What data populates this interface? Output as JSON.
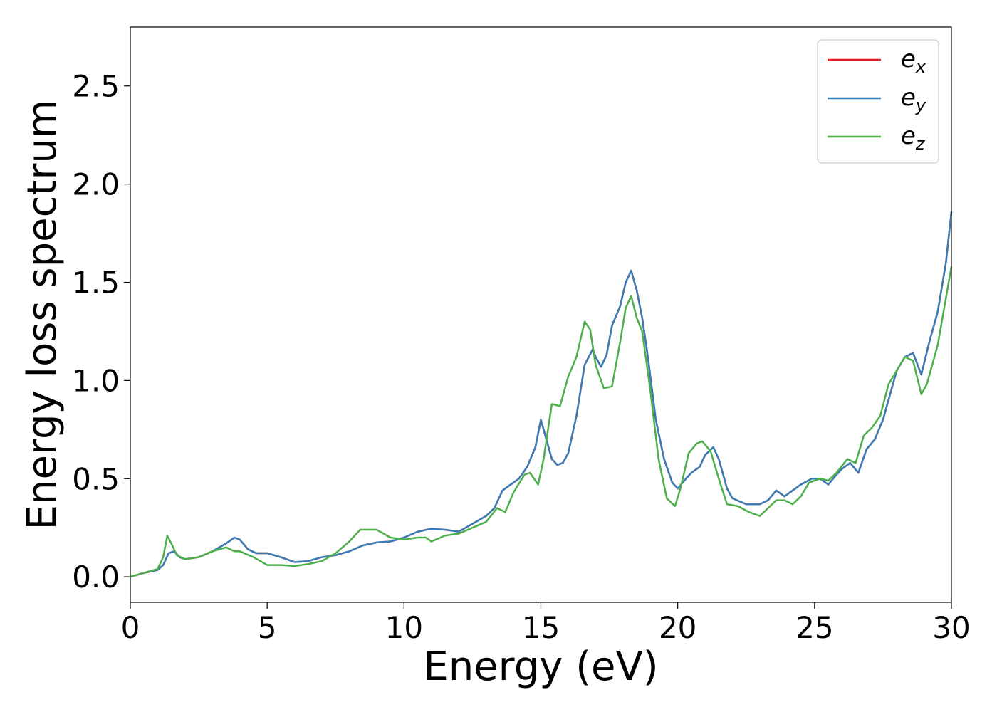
{
  "chart_data": {
    "type": "line",
    "title": "",
    "xlabel": "Energy (eV)",
    "ylabel": "Energy loss spectrum",
    "xlim": [
      0,
      30
    ],
    "ylim": [
      -0.13,
      2.8
    ],
    "xticks": [
      0,
      5,
      10,
      15,
      20,
      25,
      30
    ],
    "xtick_labels": [
      "0",
      "5",
      "10",
      "15",
      "20",
      "25",
      "30"
    ],
    "yticks": [
      0.0,
      0.5,
      1.0,
      1.5,
      2.0,
      2.5
    ],
    "ytick_labels": [
      "0.0",
      "0.5",
      "1.0",
      "1.5",
      "2.0",
      "2.5"
    ],
    "grid": false,
    "legend_position": "top-right",
    "series": [
      {
        "name": "e_x",
        "label_base": "e",
        "label_sub": "x",
        "color": "#e41a1c",
        "x": [
          0,
          0.5,
          1.0,
          1.2,
          1.4,
          1.6,
          1.8,
          2.0,
          2.5,
          3.0,
          3.5,
          3.8,
          4.0,
          4.3,
          4.6,
          5.0,
          5.5,
          6.0,
          6.5,
          7.0,
          7.5,
          8.0,
          8.5,
          9.0,
          9.5,
          10.0,
          10.5,
          11.0,
          11.5,
          12.0,
          12.5,
          13.0,
          13.3,
          13.6,
          13.9,
          14.2,
          14.5,
          14.8,
          15.0,
          15.2,
          15.4,
          15.6,
          15.8,
          16.0,
          16.3,
          16.6,
          16.9,
          17.0,
          17.2,
          17.4,
          17.6,
          17.9,
          18.1,
          18.3,
          18.5,
          18.7,
          18.9,
          19.2,
          19.5,
          19.8,
          20.0,
          20.3,
          20.5,
          20.8,
          21.0,
          21.3,
          21.5,
          21.8,
          22.0,
          22.5,
          23.0,
          23.3,
          23.6,
          23.9,
          24.2,
          24.5,
          24.9,
          25.2,
          25.5,
          25.8,
          26.0,
          26.3,
          26.6,
          26.9,
          27.2,
          27.5,
          27.8,
          28.0,
          28.3,
          28.6,
          28.9,
          29.2,
          29.5,
          29.8,
          30.0
        ],
        "y": [
          0.0,
          0.02,
          0.035,
          0.06,
          0.12,
          0.13,
          0.1,
          0.09,
          0.1,
          0.13,
          0.17,
          0.2,
          0.19,
          0.14,
          0.12,
          0.12,
          0.1,
          0.075,
          0.08,
          0.1,
          0.11,
          0.13,
          0.16,
          0.175,
          0.18,
          0.2,
          0.23,
          0.245,
          0.24,
          0.23,
          0.27,
          0.31,
          0.35,
          0.44,
          0.47,
          0.5,
          0.56,
          0.66,
          0.8,
          0.7,
          0.6,
          0.57,
          0.58,
          0.63,
          0.82,
          1.08,
          1.16,
          1.12,
          1.07,
          1.13,
          1.28,
          1.38,
          1.5,
          1.56,
          1.46,
          1.32,
          1.13,
          0.8,
          0.6,
          0.48,
          0.45,
          0.5,
          0.53,
          0.56,
          0.62,
          0.66,
          0.6,
          0.45,
          0.4,
          0.37,
          0.37,
          0.39,
          0.44,
          0.41,
          0.44,
          0.47,
          0.5,
          0.5,
          0.47,
          0.52,
          0.55,
          0.58,
          0.53,
          0.65,
          0.7,
          0.8,
          0.95,
          1.05,
          1.12,
          1.14,
          1.03,
          1.2,
          1.35,
          1.6,
          1.86
        ]
      },
      {
        "name": "e_y",
        "label_base": "e",
        "label_sub": "y",
        "color": "#377eb8",
        "x": [
          0,
          0.5,
          1.0,
          1.2,
          1.4,
          1.6,
          1.8,
          2.0,
          2.5,
          3.0,
          3.5,
          3.8,
          4.0,
          4.3,
          4.6,
          5.0,
          5.5,
          6.0,
          6.5,
          7.0,
          7.5,
          8.0,
          8.5,
          9.0,
          9.5,
          10.0,
          10.5,
          11.0,
          11.5,
          12.0,
          12.5,
          13.0,
          13.3,
          13.6,
          13.9,
          14.2,
          14.5,
          14.8,
          15.0,
          15.2,
          15.4,
          15.6,
          15.8,
          16.0,
          16.3,
          16.6,
          16.9,
          17.0,
          17.2,
          17.4,
          17.6,
          17.9,
          18.1,
          18.3,
          18.5,
          18.7,
          18.9,
          19.2,
          19.5,
          19.8,
          20.0,
          20.3,
          20.5,
          20.8,
          21.0,
          21.3,
          21.5,
          21.8,
          22.0,
          22.5,
          23.0,
          23.3,
          23.6,
          23.9,
          24.2,
          24.5,
          24.9,
          25.2,
          25.5,
          25.8,
          26.0,
          26.3,
          26.6,
          26.9,
          27.2,
          27.5,
          27.8,
          28.0,
          28.3,
          28.6,
          28.9,
          29.2,
          29.5,
          29.8,
          30.0
        ],
        "y": [
          0.0,
          0.02,
          0.035,
          0.06,
          0.12,
          0.13,
          0.1,
          0.09,
          0.1,
          0.13,
          0.17,
          0.2,
          0.19,
          0.14,
          0.12,
          0.12,
          0.1,
          0.075,
          0.08,
          0.1,
          0.11,
          0.13,
          0.16,
          0.175,
          0.18,
          0.2,
          0.23,
          0.245,
          0.24,
          0.23,
          0.27,
          0.31,
          0.35,
          0.44,
          0.47,
          0.5,
          0.56,
          0.66,
          0.8,
          0.7,
          0.6,
          0.57,
          0.58,
          0.63,
          0.82,
          1.08,
          1.16,
          1.12,
          1.07,
          1.13,
          1.28,
          1.38,
          1.5,
          1.56,
          1.46,
          1.32,
          1.13,
          0.8,
          0.6,
          0.48,
          0.45,
          0.5,
          0.53,
          0.56,
          0.62,
          0.66,
          0.6,
          0.45,
          0.4,
          0.37,
          0.37,
          0.39,
          0.44,
          0.41,
          0.44,
          0.47,
          0.5,
          0.5,
          0.47,
          0.52,
          0.55,
          0.58,
          0.53,
          0.65,
          0.7,
          0.8,
          0.95,
          1.05,
          1.12,
          1.14,
          1.03,
          1.2,
          1.35,
          1.6,
          1.86
        ]
      },
      {
        "name": "e_z",
        "label_base": "e",
        "label_sub": "z",
        "color": "#4daf4a",
        "x": [
          0,
          0.5,
          1.0,
          1.2,
          1.35,
          1.5,
          1.7,
          2.0,
          2.5,
          3.0,
          3.5,
          3.8,
          4.0,
          4.5,
          5.0,
          5.5,
          6.0,
          6.5,
          7.0,
          7.5,
          8.0,
          8.4,
          8.7,
          9.0,
          9.5,
          10.0,
          10.5,
          10.8,
          11.0,
          11.5,
          12.0,
          12.5,
          13.0,
          13.4,
          13.7,
          14.0,
          14.4,
          14.6,
          14.9,
          15.1,
          15.4,
          15.7,
          16.0,
          16.3,
          16.6,
          16.8,
          17.0,
          17.3,
          17.6,
          17.9,
          18.1,
          18.3,
          18.5,
          18.7,
          19.0,
          19.3,
          19.6,
          19.9,
          20.1,
          20.4,
          20.7,
          20.9,
          21.2,
          21.5,
          21.8,
          22.2,
          22.6,
          23.0,
          23.3,
          23.6,
          23.9,
          24.2,
          24.5,
          24.8,
          25.2,
          25.5,
          25.8,
          26.2,
          26.5,
          26.8,
          27.1,
          27.4,
          27.7,
          28.0,
          28.3,
          28.6,
          28.9,
          29.1,
          29.5,
          29.8,
          30.0
        ],
        "y": [
          0.0,
          0.02,
          0.04,
          0.1,
          0.21,
          0.17,
          0.11,
          0.09,
          0.1,
          0.13,
          0.15,
          0.13,
          0.13,
          0.1,
          0.06,
          0.06,
          0.055,
          0.065,
          0.08,
          0.12,
          0.18,
          0.24,
          0.24,
          0.24,
          0.2,
          0.19,
          0.2,
          0.2,
          0.18,
          0.21,
          0.22,
          0.25,
          0.28,
          0.35,
          0.33,
          0.43,
          0.52,
          0.53,
          0.47,
          0.6,
          0.88,
          0.87,
          1.02,
          1.12,
          1.3,
          1.26,
          1.08,
          0.96,
          0.97,
          1.2,
          1.37,
          1.43,
          1.32,
          1.25,
          0.95,
          0.6,
          0.4,
          0.36,
          0.45,
          0.63,
          0.68,
          0.69,
          0.64,
          0.5,
          0.37,
          0.36,
          0.33,
          0.31,
          0.35,
          0.39,
          0.39,
          0.37,
          0.41,
          0.48,
          0.5,
          0.49,
          0.53,
          0.6,
          0.58,
          0.72,
          0.76,
          0.82,
          0.98,
          1.05,
          1.12,
          1.1,
          0.93,
          0.98,
          1.18,
          1.42,
          1.58
        ]
      }
    ]
  }
}
